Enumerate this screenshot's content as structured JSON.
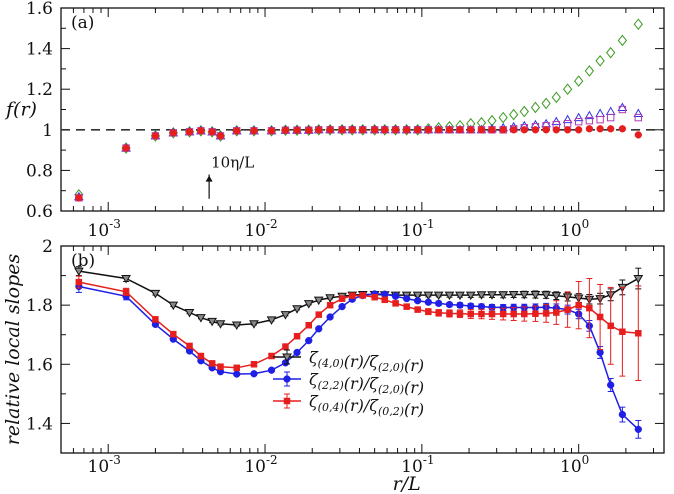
{
  "chart_data": [
    {
      "type": "scatter",
      "panel_label": "(a)",
      "ylabel": "f(r)",
      "x_scale": "log",
      "xlim": [
        0.0005,
        3.5
      ],
      "ylim": [
        0.6,
        1.6
      ],
      "y_ticks": [
        0.6,
        0.8,
        1.0,
        1.2,
        1.4,
        1.6
      ],
      "y_tick_labels": [
        "0.6",
        "0.8",
        "1",
        "1.2",
        "1.4",
        "1.6"
      ],
      "x_ticks": [
        0.001,
        0.01,
        0.1,
        1
      ],
      "reference_line": {
        "y": 1.0,
        "style": "dashed"
      },
      "annotation": {
        "text": "10η/L",
        "x": 0.0044,
        "y": 0.66
      },
      "x": [
        0.00065,
        0.0013,
        0.002,
        0.0026,
        0.0033,
        0.0039,
        0.0046,
        0.0052,
        0.0066,
        0.0085,
        0.011,
        0.0135,
        0.016,
        0.019,
        0.022,
        0.026,
        0.031,
        0.036,
        0.042,
        0.05,
        0.058,
        0.068,
        0.08,
        0.094,
        0.11,
        0.128,
        0.15,
        0.175,
        0.205,
        0.24,
        0.28,
        0.33,
        0.385,
        0.45,
        0.53,
        0.62,
        0.72,
        0.85,
        1.0,
        1.17,
        1.37,
        1.6,
        1.9,
        2.4
      ],
      "series": [
        {
          "marker": "diamond-open",
          "color": "#3a9a1e",
          "values": [
            0.68,
            0.91,
            0.97,
            0.985,
            0.99,
            0.995,
            0.99,
            0.97,
            0.995,
            0.995,
            0.995,
            0.998,
            0.998,
            0.998,
            1.0,
            1.0,
            1.0,
            1.0,
            1.0,
            1.0,
            1.0,
            1.0,
            1.0,
            1.0,
            1.005,
            1.01,
            1.015,
            1.02,
            1.03,
            1.035,
            1.045,
            1.06,
            1.075,
            1.09,
            1.11,
            1.13,
            1.16,
            1.2,
            1.24,
            1.29,
            1.34,
            1.38,
            1.44,
            1.52
          ]
        },
        {
          "marker": "triangle-open",
          "color": "#3232e6",
          "values": [
            0.67,
            0.91,
            0.97,
            0.985,
            0.99,
            0.995,
            0.99,
            0.97,
            0.995,
            0.995,
            0.995,
            0.998,
            0.998,
            0.998,
            1.0,
            1.0,
            1.0,
            1.0,
            1.0,
            1.0,
            1.0,
            1.0,
            1.0,
            1.0,
            1.0,
            1.0,
            1.0,
            1.0,
            1.0,
            1.0,
            1.005,
            1.01,
            1.015,
            1.02,
            1.025,
            1.03,
            1.04,
            1.05,
            1.06,
            1.07,
            1.08,
            1.09,
            1.11,
            1.08
          ]
        },
        {
          "marker": "square-open",
          "color": "#b03ab3",
          "values": [
            0.665,
            0.91,
            0.97,
            0.985,
            0.99,
            0.995,
            0.99,
            0.97,
            0.995,
            0.995,
            0.995,
            0.998,
            0.998,
            0.998,
            1.0,
            1.0,
            1.0,
            1.0,
            1.0,
            1.0,
            1.0,
            1.0,
            1.0,
            1.0,
            1.0,
            1.0,
            1.0,
            1.0,
            1.0,
            1.0,
            1.0,
            1.0,
            1.005,
            1.01,
            1.015,
            1.02,
            1.025,
            1.03,
            1.04,
            1.045,
            1.05,
            1.06,
            1.1,
            1.06
          ]
        },
        {
          "marker": "circle-filled",
          "color": "#e61e1e",
          "values": [
            0.665,
            0.91,
            0.97,
            0.985,
            0.99,
            0.995,
            0.99,
            0.97,
            0.995,
            0.995,
            0.995,
            0.998,
            0.998,
            0.998,
            1.0,
            1.0,
            1.0,
            1.0,
            1.0,
            1.0,
            1.0,
            1.0,
            1.0,
            1.0,
            1.0,
            1.0,
            1.0,
            1.0,
            1.0,
            1.0,
            1.0,
            1.0,
            1.0,
            1.0,
            1.0,
            1.0,
            1.0,
            1.0,
            1.0,
            1.005,
            1.005,
            1.005,
            1.005,
            0.975
          ]
        }
      ]
    },
    {
      "type": "line",
      "panel_label": "(b)",
      "xlabel": "r/L",
      "ylabel": "relative local slopes",
      "x_scale": "log",
      "xlim": [
        0.0005,
        3.5
      ],
      "ylim": [
        1.3,
        2.0
      ],
      "y_ticks": [
        1.4,
        1.6,
        1.8,
        2.0
      ],
      "y_tick_labels": [
        "1.4",
        "1.6",
        "1.8",
        "2"
      ],
      "x_ticks": [
        0.001,
        0.01,
        0.1,
        1
      ],
      "x_tick_labels": [
        {
          "base": "10",
          "exp": "-3"
        },
        {
          "base": "10",
          "exp": "-2"
        },
        {
          "base": "10",
          "exp": "-1"
        },
        {
          "base": "10",
          "exp": "0"
        }
      ],
      "legend_position": "bottom-center",
      "x": [
        0.00065,
        0.0013,
        0.002,
        0.0026,
        0.0033,
        0.0039,
        0.0046,
        0.0052,
        0.0066,
        0.0085,
        0.011,
        0.0135,
        0.016,
        0.019,
        0.022,
        0.026,
        0.031,
        0.036,
        0.042,
        0.05,
        0.058,
        0.068,
        0.08,
        0.094,
        0.11,
        0.128,
        0.15,
        0.175,
        0.205,
        0.24,
        0.28,
        0.33,
        0.385,
        0.45,
        0.53,
        0.62,
        0.72,
        0.85,
        1.0,
        1.17,
        1.37,
        1.6,
        1.9,
        2.4
      ],
      "series": [
        {
          "name_parts": [
            {
              "t": "ζ"
            },
            {
              "sub": "(4,0)"
            },
            {
              "t": "(r)/ζ"
            },
            {
              "sub": "(2,0)"
            },
            {
              "t": "(r)"
            }
          ],
          "marker": "triangle-down",
          "color": "#111111",
          "marker_fill": "#888888",
          "values": [
            1.915,
            1.89,
            1.84,
            1.8,
            1.775,
            1.758,
            1.745,
            1.737,
            1.733,
            1.737,
            1.75,
            1.768,
            1.788,
            1.805,
            1.817,
            1.825,
            1.83,
            1.834,
            1.836,
            1.836,
            1.835,
            1.834,
            1.834,
            1.834,
            1.834,
            1.834,
            1.834,
            1.834,
            1.834,
            1.835,
            1.835,
            1.835,
            1.836,
            1.836,
            1.836,
            1.835,
            1.832,
            1.828,
            1.824,
            1.82,
            1.822,
            1.835,
            1.86,
            1.89
          ],
          "errors": [
            0.015,
            0.01,
            0.006,
            0.005,
            0.004,
            0.004,
            0.004,
            0.004,
            0.004,
            0.004,
            0.004,
            0.004,
            0.004,
            0.004,
            0.004,
            0.004,
            0.004,
            0.004,
            0.004,
            0.004,
            0.004,
            0.004,
            0.005,
            0.005,
            0.006,
            0.006,
            0.007,
            0.007,
            0.008,
            0.008,
            0.009,
            0.01,
            0.01,
            0.011,
            0.012,
            0.012,
            0.013,
            0.014,
            0.015,
            0.016,
            0.018,
            0.02,
            0.025,
            0.035
          ]
        },
        {
          "name_parts": [
            {
              "t": "ζ"
            },
            {
              "sub": "(2,2)"
            },
            {
              "t": "(r)/ζ"
            },
            {
              "sub": "(2,0)"
            },
            {
              "t": "(r)"
            }
          ],
          "marker": "circle-filled",
          "color": "#1f1fe6",
          "values": [
            1.863,
            1.83,
            1.735,
            1.685,
            1.645,
            1.612,
            1.588,
            1.575,
            1.567,
            1.568,
            1.58,
            1.605,
            1.64,
            1.68,
            1.72,
            1.76,
            1.795,
            1.82,
            1.833,
            1.838,
            1.837,
            1.83,
            1.822,
            1.815,
            1.81,
            1.806,
            1.802,
            1.8,
            1.797,
            1.795,
            1.793,
            1.792,
            1.792,
            1.792,
            1.792,
            1.793,
            1.79,
            1.785,
            1.77,
            1.73,
            1.64,
            1.53,
            1.43,
            1.38
          ],
          "errors": [
            0.02,
            0.012,
            0.006,
            0.005,
            0.004,
            0.004,
            0.004,
            0.004,
            0.004,
            0.004,
            0.004,
            0.004,
            0.004,
            0.004,
            0.004,
            0.004,
            0.004,
            0.004,
            0.004,
            0.004,
            0.004,
            0.005,
            0.005,
            0.006,
            0.006,
            0.007,
            0.007,
            0.008,
            0.008,
            0.009,
            0.009,
            0.01,
            0.011,
            0.011,
            0.012,
            0.013,
            0.014,
            0.015,
            0.016,
            0.018,
            0.02,
            0.022,
            0.025,
            0.03
          ]
        },
        {
          "name_parts": [
            {
              "t": "ζ"
            },
            {
              "sub": "(0,4)"
            },
            {
              "t": "(r)/ζ"
            },
            {
              "sub": "(0,2)"
            },
            {
              "t": "(r)"
            }
          ],
          "marker": "square-filled",
          "color": "#e61e1e",
          "values": [
            1.878,
            1.845,
            1.752,
            1.702,
            1.662,
            1.628,
            1.603,
            1.592,
            1.588,
            1.6,
            1.628,
            1.66,
            1.695,
            1.732,
            1.768,
            1.8,
            1.822,
            1.832,
            1.833,
            1.827,
            1.818,
            1.806,
            1.795,
            1.785,
            1.778,
            1.774,
            1.772,
            1.771,
            1.77,
            1.77,
            1.77,
            1.77,
            1.77,
            1.77,
            1.771,
            1.772,
            1.775,
            1.785,
            1.8,
            1.79,
            1.76,
            1.73,
            1.71,
            1.705
          ],
          "errors": [
            0.02,
            0.012,
            0.006,
            0.005,
            0.004,
            0.004,
            0.004,
            0.004,
            0.004,
            0.004,
            0.004,
            0.004,
            0.004,
            0.004,
            0.004,
            0.004,
            0.004,
            0.004,
            0.004,
            0.005,
            0.005,
            0.006,
            0.007,
            0.008,
            0.01,
            0.011,
            0.012,
            0.013,
            0.015,
            0.016,
            0.018,
            0.02,
            0.022,
            0.024,
            0.026,
            0.03,
            0.04,
            0.06,
            0.08,
            0.1,
            0.11,
            0.13,
            0.15,
            0.16
          ]
        }
      ]
    }
  ]
}
